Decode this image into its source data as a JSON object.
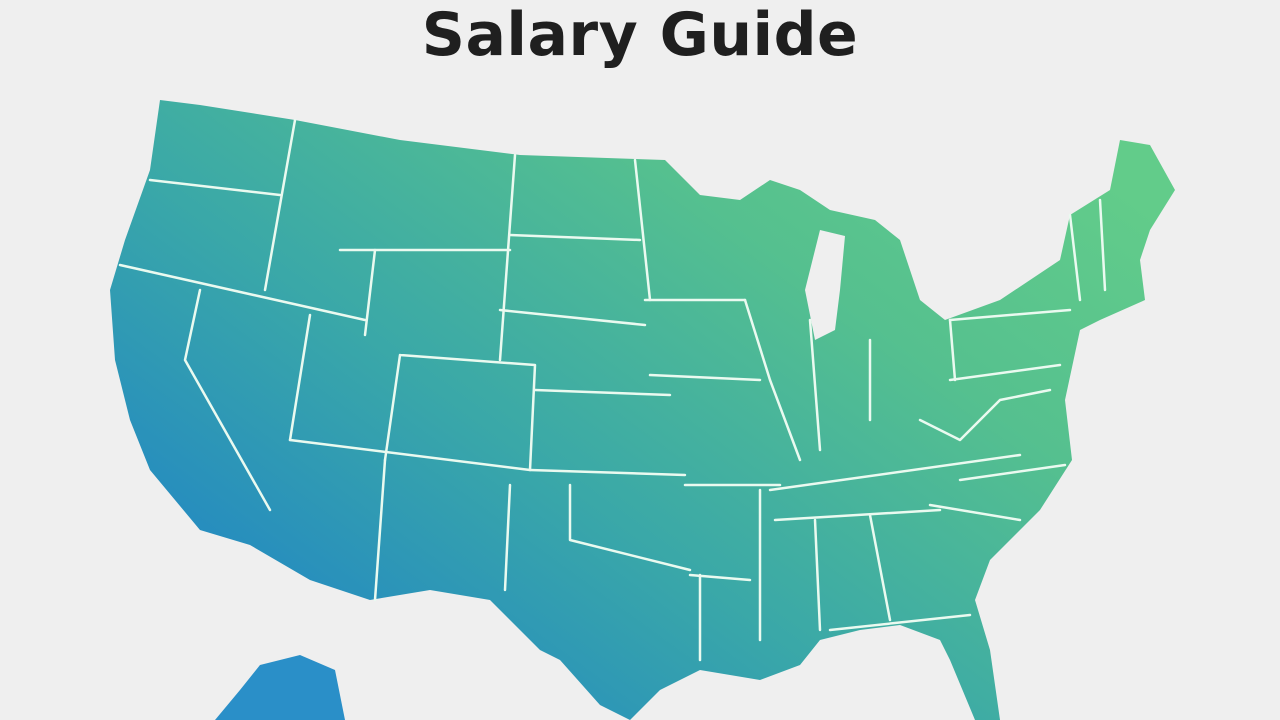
{
  "header": {
    "title": "Salary Guide"
  }
}
